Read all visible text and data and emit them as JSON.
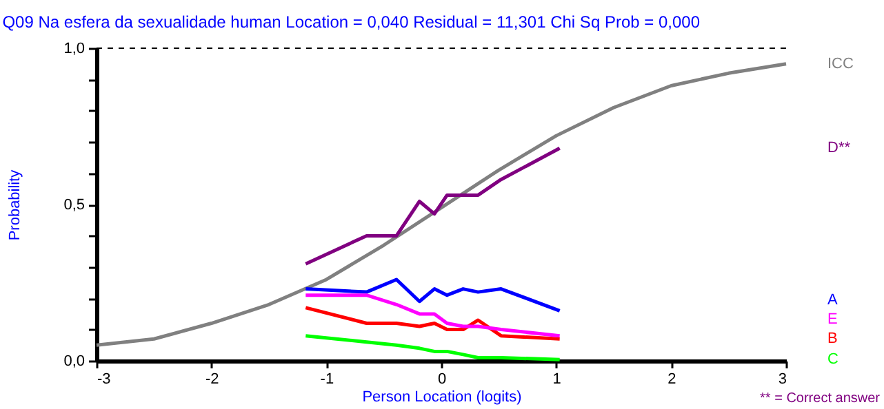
{
  "chart_data": {
    "type": "line",
    "title": "Q09    Na esfera da sexualidade human     Location = 0,040     Residual = 11,301     Chi Sq Prob = 0,000",
    "xlabel": "Person Location (logits)",
    "ylabel": "Probability",
    "xlim": [
      -3,
      3
    ],
    "xticks": [
      -3,
      -2,
      -1,
      0,
      1,
      2,
      3
    ],
    "ylim": [
      0,
      1
    ],
    "yticks": [
      {
        "value": 0,
        "label": "0,0"
      },
      {
        "value": 0.1,
        "label": null
      },
      {
        "value": 0.2,
        "label": null
      },
      {
        "value": 0.3,
        "label": null
      },
      {
        "value": 0.4,
        "label": null
      },
      {
        "value": 0.5,
        "label": "0,5"
      },
      {
        "value": 0.6,
        "label": null
      },
      {
        "value": 0.7,
        "label": null
      },
      {
        "value": 0.8,
        "label": null
      },
      {
        "value": 0.9,
        "label": null
      },
      {
        "value": 1,
        "label": "1,0"
      }
    ],
    "legend": "right",
    "grid": false,
    "marker": "none",
    "ref_lines": [
      {
        "axis": "y",
        "value": 1,
        "label": null,
        "color": "#000000",
        "line_style": "dashed"
      }
    ],
    "annotations": [
      "** = Correct answer"
    ],
    "series": [
      {
        "name": "ICC",
        "type": "line",
        "color": "#808080",
        "x": [
          -3,
          -2.5,
          -2,
          -1.5,
          -1,
          -0.5,
          0,
          0.5,
          1,
          1.5,
          2,
          2.5,
          3
        ],
        "values": [
          0.05,
          0.07,
          0.12,
          0.18,
          0.26,
          0.37,
          0.49,
          0.61,
          0.72,
          0.81,
          0.88,
          0.92,
          0.95
        ]
      },
      {
        "name": "D**",
        "type": "line",
        "color": "#800080",
        "x": [
          -1.18,
          -0.65,
          -0.39,
          -0.19,
          -0.06,
          0.05,
          0.19,
          0.32,
          0.52,
          1.03
        ],
        "values": [
          0.31,
          0.4,
          0.4,
          0.51,
          0.47,
          0.53,
          0.53,
          0.53,
          0.58,
          0.68
        ]
      },
      {
        "name": "A",
        "type": "line",
        "color": "#0000ff",
        "x": [
          -1.18,
          -0.65,
          -0.39,
          -0.19,
          -0.06,
          0.05,
          0.19,
          0.32,
          0.52,
          1.03
        ],
        "values": [
          0.23,
          0.22,
          0.26,
          0.19,
          0.23,
          0.21,
          0.23,
          0.22,
          0.23,
          0.16
        ]
      },
      {
        "name": "B",
        "type": "line",
        "color": "#ff0000",
        "x": [
          -1.18,
          -0.65,
          -0.39,
          -0.19,
          -0.06,
          0.05,
          0.19,
          0.32,
          0.52,
          1.03
        ],
        "values": [
          0.17,
          0.12,
          0.12,
          0.11,
          0.12,
          0.1,
          0.1,
          0.13,
          0.08,
          0.07
        ]
      },
      {
        "name": "E",
        "type": "line",
        "color": "#ff00ff",
        "x": [
          -1.18,
          -0.65,
          -0.39,
          -0.19,
          -0.06,
          0.05,
          0.19,
          0.32,
          0.52,
          1.03
        ],
        "values": [
          0.21,
          0.21,
          0.18,
          0.15,
          0.15,
          0.12,
          0.11,
          0.11,
          0.1,
          0.08
        ]
      },
      {
        "name": "C",
        "type": "line",
        "color": "#00ff00",
        "x": [
          -1.18,
          -0.65,
          -0.39,
          -0.19,
          -0.06,
          0.05,
          0.19,
          0.32,
          0.52,
          1.03
        ],
        "values": [
          0.08,
          0.06,
          0.05,
          0.04,
          0.03,
          0.03,
          0.02,
          0.01,
          0.01,
          0.004
        ]
      }
    ]
  }
}
